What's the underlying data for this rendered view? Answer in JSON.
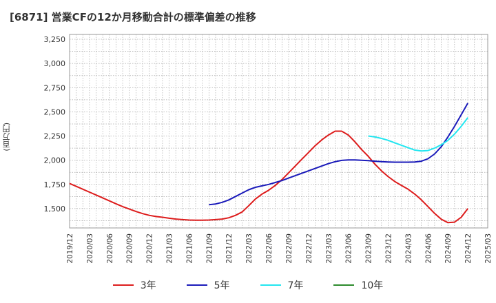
{
  "chart_data": {
    "type": "line",
    "title": "[6871]  営業CFの12か月移動合計の標準偏差の推移",
    "ylabel": "(百万円)",
    "xlabel": "",
    "ylim": [
      1300,
      3300
    ],
    "yticks": [
      1500,
      1750,
      2000,
      2250,
      2500,
      2750,
      3000,
      3250
    ],
    "ytick_labels": [
      "1,500",
      "1,750",
      "2,000",
      "2,250",
      "2,500",
      "2,750",
      "3,000",
      "3,250"
    ],
    "xticks": [
      "2019/12",
      "2020/03",
      "2020/06",
      "2020/09",
      "2020/12",
      "2021/03",
      "2021/06",
      "2021/09",
      "2021/12",
      "2022/03",
      "2022/06",
      "2022/09",
      "2022/12",
      "2023/03",
      "2023/06",
      "2023/09",
      "2023/12",
      "2024/03",
      "2024/06",
      "2024/09",
      "2024/12",
      "2025/03"
    ],
    "grid": true,
    "legend_position": "bottom",
    "series": [
      {
        "name": "3年",
        "color": "#dd1c1c",
        "x": [
          "2019/12",
          "2020/01",
          "2020/02",
          "2020/03",
          "2020/04",
          "2020/05",
          "2020/06",
          "2020/07",
          "2020/08",
          "2020/09",
          "2020/10",
          "2020/11",
          "2020/12",
          "2021/01",
          "2021/02",
          "2021/03",
          "2021/04",
          "2021/05",
          "2021/06",
          "2021/07",
          "2021/08",
          "2021/09",
          "2021/10",
          "2021/11",
          "2021/12",
          "2022/01",
          "2022/02",
          "2022/03",
          "2022/04",
          "2022/05",
          "2022/06",
          "2022/07",
          "2022/08",
          "2022/09",
          "2022/10",
          "2022/11",
          "2022/12",
          "2023/01",
          "2023/02",
          "2023/03",
          "2023/04",
          "2023/05",
          "2023/06",
          "2023/07",
          "2023/08",
          "2023/09",
          "2023/10",
          "2023/11",
          "2023/12",
          "2024/01",
          "2024/02",
          "2024/03",
          "2024/04",
          "2024/05",
          "2024/06",
          "2024/07",
          "2024/08",
          "2024/09",
          "2024/10",
          "2024/11",
          "2024/12"
        ],
        "values": [
          1760,
          1730,
          1700,
          1670,
          1640,
          1610,
          1580,
          1550,
          1520,
          1495,
          1470,
          1448,
          1430,
          1418,
          1410,
          1400,
          1392,
          1386,
          1382,
          1380,
          1380,
          1382,
          1386,
          1392,
          1405,
          1430,
          1465,
          1530,
          1600,
          1650,
          1690,
          1740,
          1800,
          1870,
          1940,
          2010,
          2080,
          2150,
          2210,
          2260,
          2300,
          2300,
          2260,
          2190,
          2110,
          2040,
          1960,
          1890,
          1830,
          1780,
          1740,
          1700,
          1650,
          1590,
          1520,
          1450,
          1390,
          1355,
          1360,
          1410,
          1500
        ]
      },
      {
        "name": "5年",
        "color": "#1a1aba",
        "x": [
          "2021/09",
          "2021/10",
          "2021/11",
          "2021/12",
          "2022/01",
          "2022/02",
          "2022/03",
          "2022/04",
          "2022/05",
          "2022/06",
          "2022/07",
          "2022/08",
          "2022/09",
          "2022/10",
          "2022/11",
          "2022/12",
          "2023/01",
          "2023/02",
          "2023/03",
          "2023/04",
          "2023/05",
          "2023/06",
          "2023/07",
          "2023/08",
          "2023/09",
          "2023/10",
          "2023/11",
          "2023/12",
          "2024/01",
          "2024/02",
          "2024/03",
          "2024/04",
          "2024/05",
          "2024/06",
          "2024/07",
          "2024/08",
          "2024/09",
          "2024/10",
          "2024/11",
          "2024/12"
        ],
        "values": [
          1540,
          1548,
          1565,
          1590,
          1625,
          1660,
          1695,
          1720,
          1735,
          1750,
          1770,
          1790,
          1815,
          1840,
          1865,
          1890,
          1915,
          1940,
          1965,
          1985,
          1998,
          2003,
          2003,
          2000,
          1996,
          1990,
          1985,
          1982,
          1980,
          1980,
          1980,
          1982,
          1990,
          2015,
          2065,
          2140,
          2240,
          2350,
          2470,
          2590
        ]
      },
      {
        "name": "7年",
        "color": "#22e6f0",
        "x": [
          "2023/09",
          "2023/10",
          "2023/11",
          "2023/12",
          "2024/01",
          "2024/02",
          "2024/03",
          "2024/04",
          "2024/05",
          "2024/06",
          "2024/07",
          "2024/08",
          "2024/09",
          "2024/10",
          "2024/11",
          "2024/12"
        ],
        "values": [
          2250,
          2240,
          2225,
          2205,
          2180,
          2155,
          2130,
          2105,
          2095,
          2100,
          2125,
          2160,
          2205,
          2270,
          2350,
          2440
        ]
      },
      {
        "name": "10年",
        "color": "#2b8a2b",
        "x": [],
        "values": []
      }
    ]
  }
}
